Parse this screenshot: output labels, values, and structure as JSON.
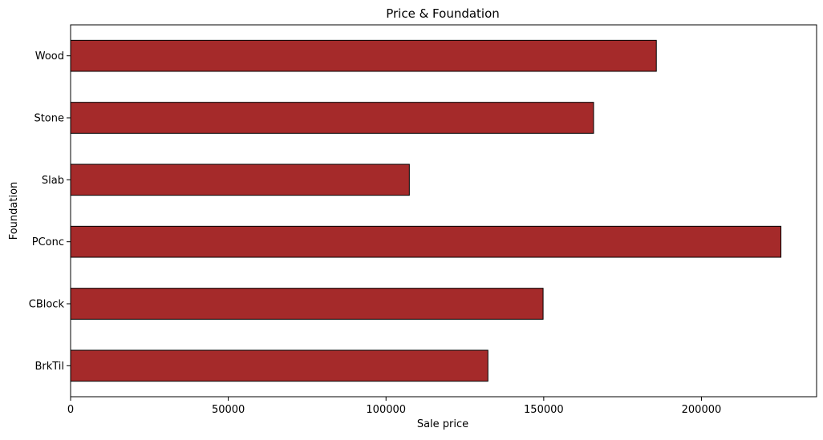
{
  "chart_data": {
    "type": "bar",
    "orientation": "horizontal",
    "title": "Price & Foundation",
    "xlabel": "Sale price",
    "ylabel": "Foundation",
    "categories": [
      "BrkTil",
      "CBlock",
      "PConc",
      "Slab",
      "Stone",
      "Wood"
    ],
    "values": [
      132300,
      149800,
      225200,
      107400,
      165800,
      185700
    ],
    "xlim": [
      0,
      236500
    ],
    "xticks": [
      0,
      50000,
      100000,
      150000,
      200000
    ],
    "xtick_labels": [
      "0",
      "50000",
      "100000",
      "150000",
      "200000"
    ],
    "grid": false,
    "legend": "none",
    "colors": {
      "bar_fill": "#a52a2a",
      "bar_edge": "#000000",
      "axes": "#000000",
      "background": "#ffffff"
    }
  }
}
